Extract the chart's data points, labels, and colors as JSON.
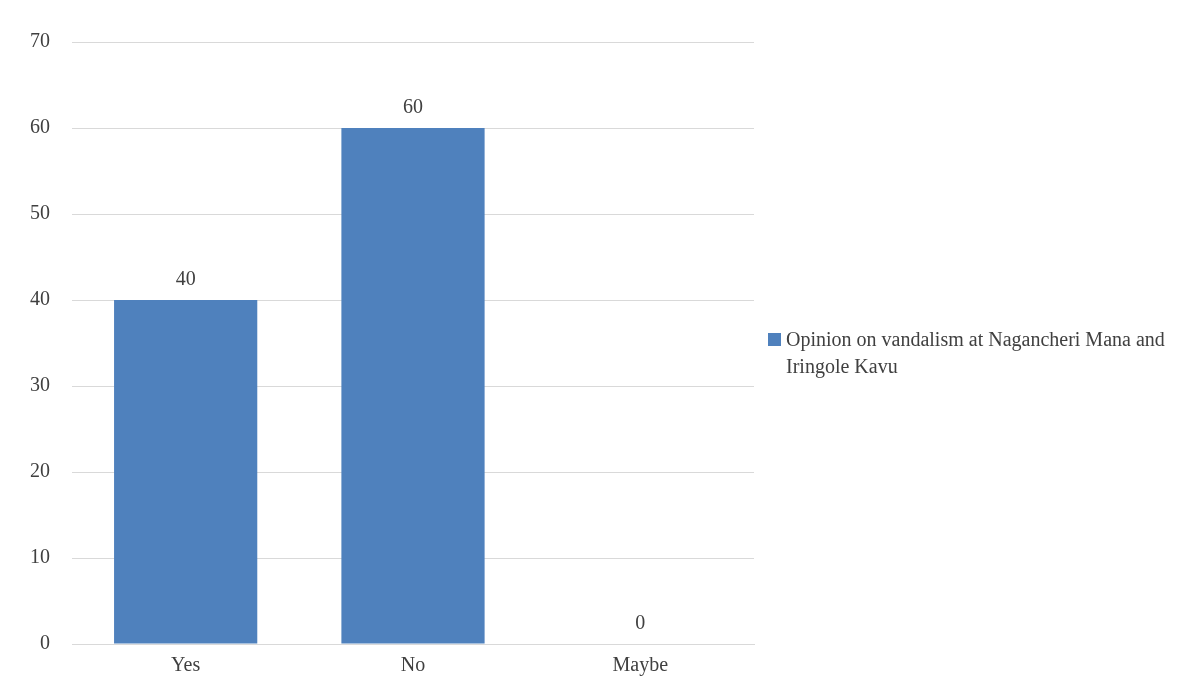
{
  "chart_data": {
    "type": "bar",
    "categories": [
      "Yes",
      "No",
      "Maybe"
    ],
    "series": [
      {
        "name": "Opinion on vandalism at Nagancheri Mana and Iringole Kavu",
        "color": "#4f81bd",
        "values": [
          40,
          60,
          0
        ]
      }
    ],
    "ylim": [
      0,
      70
    ],
    "yticks": [
      0,
      10,
      20,
      30,
      40,
      50,
      60,
      70
    ],
    "grid": "y",
    "legend": "right",
    "data_labels": true
  }
}
